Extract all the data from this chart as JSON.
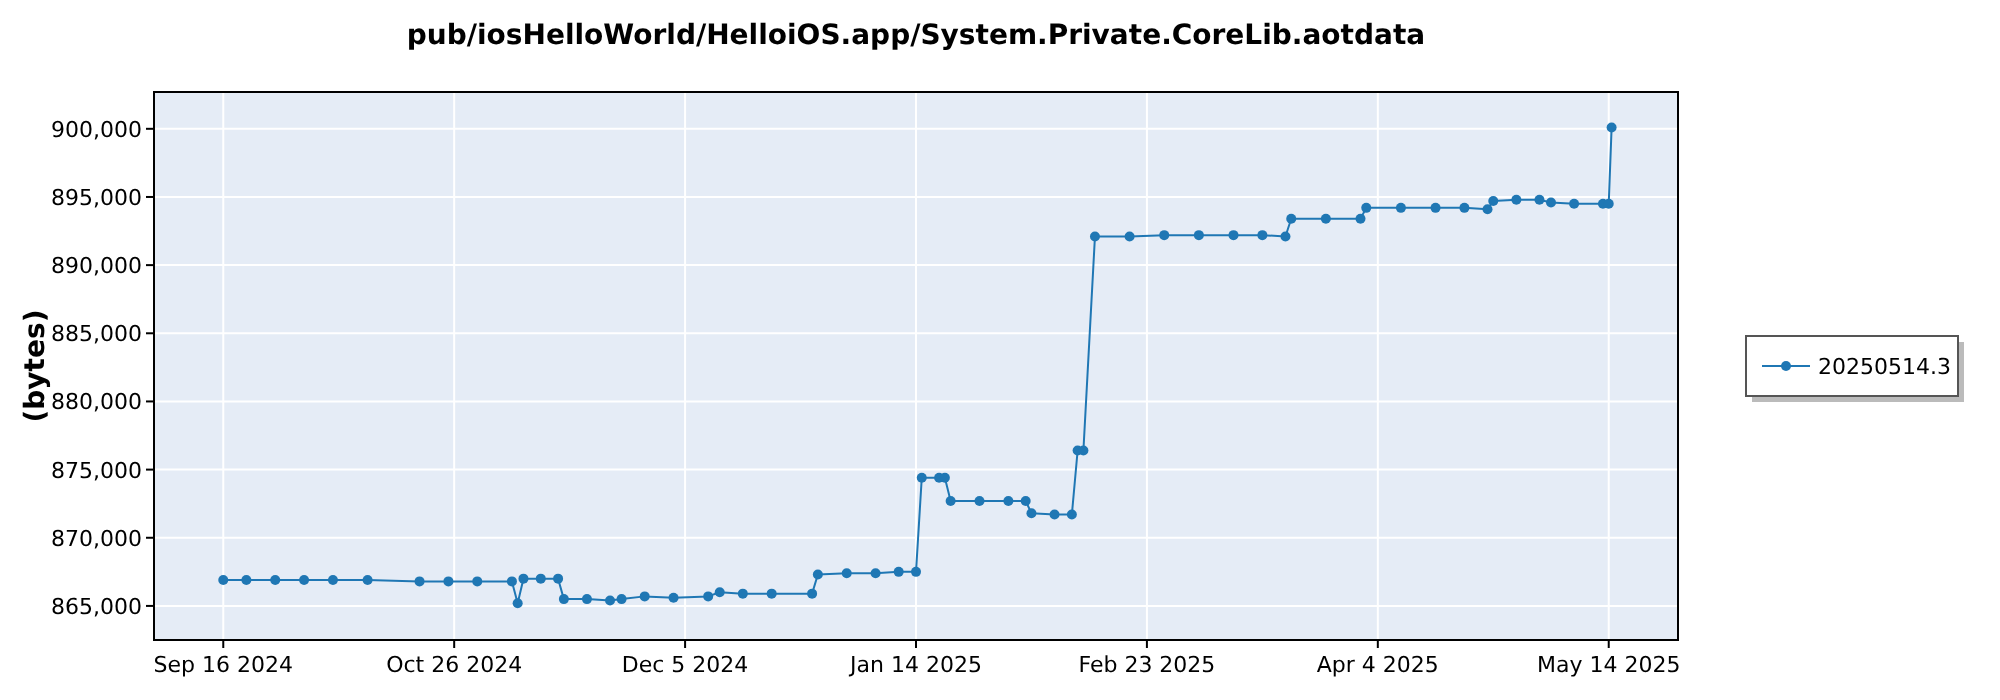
{
  "chart_data": {
    "type": "line",
    "title": "pub/iosHelloWorld/HelloiOS.app/System.Private.CoreLib.aotdata",
    "ylabel": "(bytes)",
    "xlim": [
      "2024-09-04",
      "2025-05-26"
    ],
    "xticks": [
      {
        "value": "2024-09-16",
        "label": "Sep 16 2024"
      },
      {
        "value": "2024-10-26",
        "label": "Oct 26 2024"
      },
      {
        "value": "2024-12-05",
        "label": "Dec 5 2024"
      },
      {
        "value": "2025-01-14",
        "label": "Jan 14 2025"
      },
      {
        "value": "2025-02-23",
        "label": "Feb 23 2025"
      },
      {
        "value": "2025-04-04",
        "label": "Apr 4 2025"
      },
      {
        "value": "2025-05-14",
        "label": "May 14 2025"
      }
    ],
    "ylim": [
      862500,
      902700
    ],
    "yticks": [
      {
        "value": 865000,
        "label": "865,000"
      },
      {
        "value": 870000,
        "label": "870,000"
      },
      {
        "value": 875000,
        "label": "875,000"
      },
      {
        "value": 880000,
        "label": "880,000"
      },
      {
        "value": 885000,
        "label": "885,000"
      },
      {
        "value": 890000,
        "label": "890,000"
      },
      {
        "value": 895000,
        "label": "895,000"
      },
      {
        "value": 900000,
        "label": "900,000"
      }
    ],
    "grid": true,
    "legend": "right",
    "marker": "circle",
    "line_style": "solid",
    "series": [
      {
        "name": "20250514.3",
        "color": "#1f77b4",
        "x": [
          "2024-09-16",
          "2024-09-20",
          "2024-09-25",
          "2024-09-30",
          "2024-10-05",
          "2024-10-11",
          "2024-10-20",
          "2024-10-25",
          "2024-10-30",
          "2024-11-05",
          "2024-11-06",
          "2024-11-07",
          "2024-11-10",
          "2024-11-13",
          "2024-11-14",
          "2024-11-18",
          "2024-11-22",
          "2024-11-24",
          "2024-11-28",
          "2024-12-03",
          "2024-12-09",
          "2024-12-11",
          "2024-12-15",
          "2024-12-20",
          "2024-12-27",
          "2024-12-28",
          "2025-01-02",
          "2025-01-07",
          "2025-01-11",
          "2025-01-14",
          "2025-01-15",
          "2025-01-18",
          "2025-01-19",
          "2025-01-20",
          "2025-01-25",
          "2025-01-30",
          "2025-02-02",
          "2025-02-03",
          "2025-02-07",
          "2025-02-10",
          "2025-02-11",
          "2025-02-12",
          "2025-02-14",
          "2025-02-20",
          "2025-02-26",
          "2025-03-04",
          "2025-03-10",
          "2025-03-15",
          "2025-03-19",
          "2025-03-20",
          "2025-03-26",
          "2025-04-01",
          "2025-04-02",
          "2025-04-08",
          "2025-04-14",
          "2025-04-19",
          "2025-04-23",
          "2025-04-24",
          "2025-04-28",
          "2025-05-02",
          "2025-05-04",
          "2025-05-08",
          "2025-05-13",
          "2025-05-14",
          "2025-05-14T12:00"
        ],
        "values": [
          866900,
          866900,
          866900,
          866900,
          866900,
          866900,
          866800,
          866800,
          866800,
          866800,
          865200,
          867000,
          867000,
          867000,
          865500,
          865500,
          865400,
          865500,
          865700,
          865600,
          865700,
          866000,
          865900,
          865900,
          865900,
          867300,
          867400,
          867400,
          867500,
          867500,
          874400,
          874400,
          874400,
          872700,
          872700,
          872700,
          872700,
          871800,
          871700,
          871700,
          876400,
          876400,
          892100,
          892100,
          892200,
          892200,
          892200,
          892200,
          892100,
          893400,
          893400,
          893400,
          894200,
          894200,
          894200,
          894200,
          894100,
          894700,
          894800,
          894800,
          894600,
          894500,
          894500,
          894500,
          900100
        ]
      }
    ]
  }
}
